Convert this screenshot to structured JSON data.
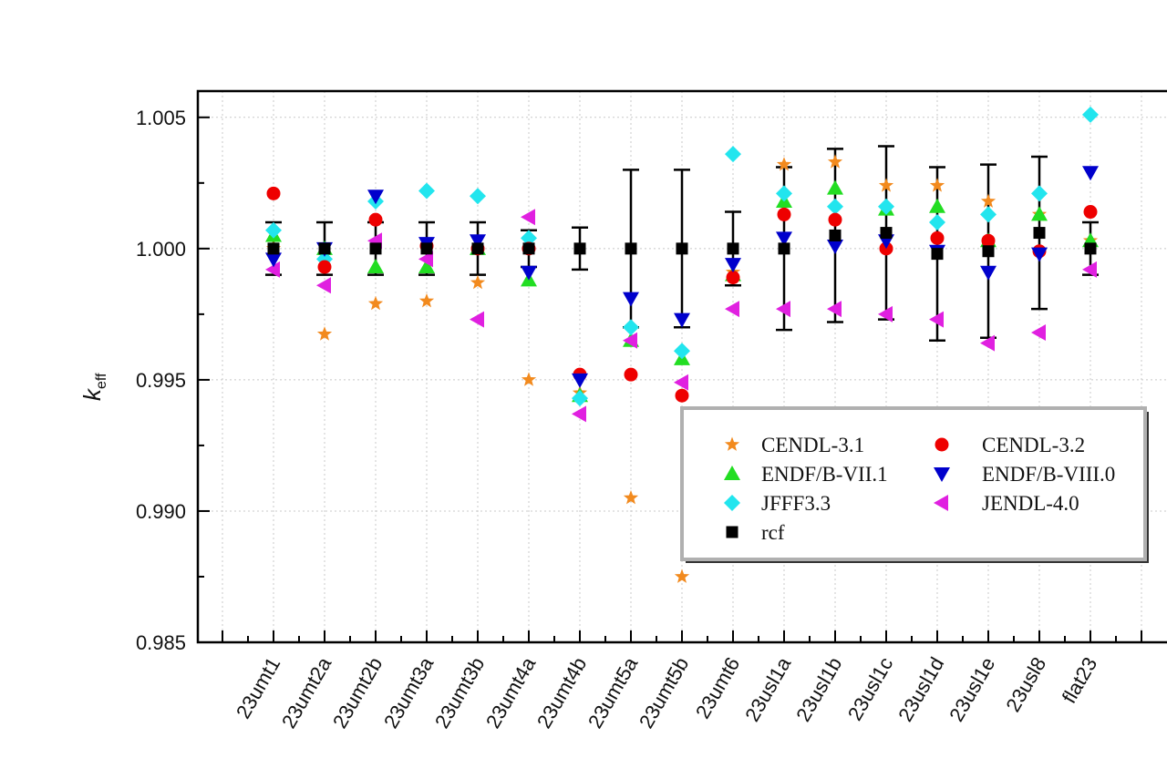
{
  "chart_data": {
    "type": "scatter",
    "title": "",
    "xlabel": "",
    "ylabel": "k",
    "ylabel_subscript": "eff",
    "ylim": [
      0.985,
      1.006
    ],
    "yticks": [
      0.985,
      0.99,
      0.995,
      1.0,
      1.005
    ],
    "ytick_labels": [
      "0.985",
      "0.990",
      "0.995",
      "1.000",
      "1.005"
    ],
    "grid": true,
    "legend_position": "lower-right",
    "categories": [
      "23umt1",
      "23umt2a",
      "23umt2b",
      "23umt3a",
      "23umt3b",
      "23umt4a",
      "23umt4b",
      "23umt5a",
      "23umt5b",
      "23umt6",
      "23usl1a",
      "23usl1b",
      "23usl1c",
      "23usl1d",
      "23usl1e",
      "23usl8",
      "flat23"
    ],
    "series": [
      {
        "name": "CENDL-3.1",
        "marker": "star",
        "color": "#f28a1e",
        "values": [
          1.0,
          0.99674,
          0.9979,
          0.998,
          0.9987,
          0.995,
          0.9945,
          0.9905,
          0.9875,
          0.9991,
          1.0032,
          1.0033,
          1.0024,
          1.0024,
          1.0018,
          1.0013,
          1.0003
        ]
      },
      {
        "name": "CENDL-3.2",
        "marker": "circle",
        "color": "#ee0000",
        "values": [
          1.0021,
          0.9993,
          1.0011,
          1.0001,
          1.0,
          1.0,
          0.9952,
          0.9952,
          0.9944,
          0.9989,
          1.0013,
          1.0011,
          1.0,
          1.0004,
          1.0003,
          0.9999,
          1.0014
        ]
      },
      {
        "name": "ENDF/B-VII.1",
        "marker": "triangle-up",
        "color": "#22dd22",
        "values": [
          1.0005,
          1.0,
          0.9993,
          0.9993,
          1.0,
          0.9988,
          0.9944,
          0.9965,
          0.9958,
          0.999,
          1.0018,
          1.0023,
          1.0015,
          1.0016,
          1.0003,
          1.0013,
          1.0003
        ]
      },
      {
        "name": "ENDF/B-VIII.0",
        "marker": "triangle-down",
        "color": "#0000cc",
        "values": [
          0.9996,
          1.0,
          1.002,
          1.0002,
          1.0003,
          0.9991,
          0.995,
          0.9981,
          0.9973,
          0.9994,
          1.0004,
          1.0001,
          1.0003,
          0.9999,
          0.9991,
          0.9998,
          1.0029
        ]
      },
      {
        "name": "JFFF3.3",
        "marker": "diamond",
        "color": "#22e5ee",
        "values": [
          1.0007,
          0.9996,
          1.0018,
          1.0022,
          1.002,
          1.0004,
          0.9943,
          0.997,
          0.9961,
          1.0036,
          1.0021,
          1.0016,
          1.0016,
          1.001,
          1.0013,
          1.0021,
          1.0051
        ]
      },
      {
        "name": "JENDL-4.0",
        "marker": "triangle-left",
        "color": "#e020e0",
        "values": [
          0.9992,
          0.9986,
          1.0003,
          0.9996,
          0.9973,
          1.0012,
          0.9937,
          0.9965,
          0.9949,
          0.9977,
          0.9977,
          0.9977,
          0.9975,
          0.9973,
          0.9964,
          0.9968,
          0.9992
        ]
      },
      {
        "name": "rcf",
        "marker": "square",
        "color": "#000000",
        "values": [
          1.0,
          1.0,
          1.0,
          1.0,
          1.0,
          1.0,
          1.0,
          1.0,
          1.0,
          1.0,
          1.0,
          1.0005,
          1.0006,
          0.9998,
          0.9999,
          1.0006,
          1.0
        ],
        "errors": [
          0.001,
          0.001,
          0.001,
          0.001,
          0.001,
          0.0007,
          0.0008,
          0.003,
          0.003,
          0.0014,
          0.0031,
          0.0033,
          0.0033,
          0.0033,
          0.0033,
          0.0029,
          0.001
        ]
      }
    ],
    "legend": {
      "columns": 2,
      "order": [
        "CENDL-3.1",
        "CENDL-3.2",
        "ENDF/B-VII.1",
        "ENDF/B-VIII.0",
        "JFFF3.3",
        "JENDL-4.0",
        "rcf"
      ]
    }
  }
}
